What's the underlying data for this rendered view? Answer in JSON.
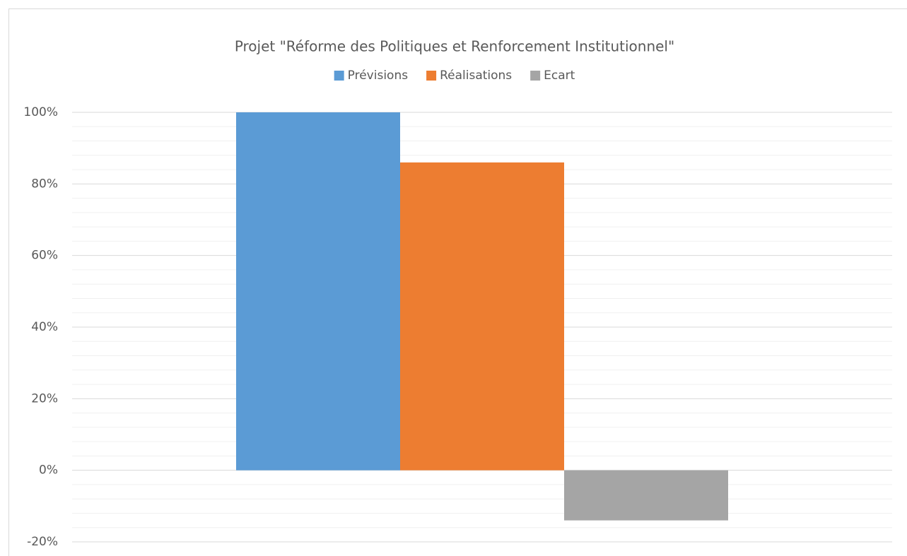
{
  "chart_data": {
    "type": "bar",
    "title": "Projet \"Réforme des Politiques et Renforcement Institutionnel\"",
    "categories": [
      null
    ],
    "series": [
      {
        "name": "Prévisions",
        "color": "#5b9bd5",
        "values": [
          100
        ]
      },
      {
        "name": "Réalisations",
        "color": "#ed7d31",
        "values": [
          86
        ]
      },
      {
        "name": "Ecart",
        "color": "#a5a5a5",
        "values": [
          -14
        ]
      }
    ],
    "ylim": [
      -20,
      100
    ],
    "yticks": [
      {
        "value": -20,
        "label": "-20%"
      },
      {
        "value": 0,
        "label": "0%"
      },
      {
        "value": 20,
        "label": "20%"
      },
      {
        "value": 40,
        "label": "40%"
      },
      {
        "value": 60,
        "label": "60%"
      },
      {
        "value": 80,
        "label": "80%"
      },
      {
        "value": 100,
        "label": "100%"
      }
    ],
    "grid": true,
    "minor_grid": true,
    "legend": "top"
  }
}
